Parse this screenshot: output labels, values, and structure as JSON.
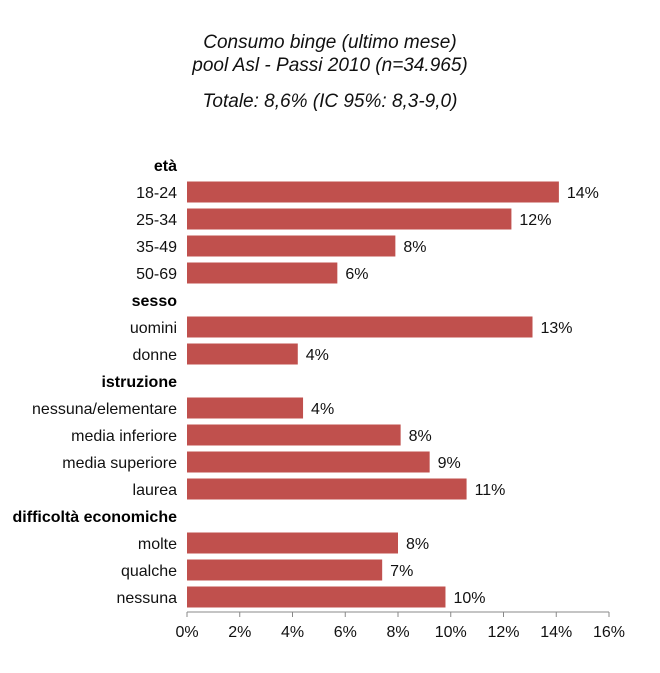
{
  "chart_data": {
    "type": "bar",
    "orientation": "horizontal",
    "title": "Consumo binge (ultimo mese)",
    "subtitle": "pool Asl - Passi 2010 (n=34.965)",
    "annotation": "Totale: 8,6% (IC 95%: 8,3-9,0)",
    "xlim": [
      0,
      16
    ],
    "xticks": [
      "0%",
      "2%",
      "4%",
      "6%",
      "8%",
      "10%",
      "12%",
      "14%",
      "16%"
    ],
    "bar_color": "#C0504D",
    "groups": [
      {
        "name": "età",
        "items": [
          {
            "label": "18-24",
            "value": 14.1,
            "data_label": "14%"
          },
          {
            "label": "25-34",
            "value": 12.3,
            "data_label": "12%"
          },
          {
            "label": "35-49",
            "value": 7.9,
            "data_label": "8%"
          },
          {
            "label": "50-69",
            "value": 5.7,
            "data_label": "6%"
          }
        ]
      },
      {
        "name": "sesso",
        "items": [
          {
            "label": "uomini",
            "value": 13.1,
            "data_label": "13%"
          },
          {
            "label": "donne",
            "value": 4.2,
            "data_label": "4%"
          }
        ]
      },
      {
        "name": "istruzione",
        "items": [
          {
            "label": "nessuna/elementare",
            "value": 4.4,
            "data_label": "4%"
          },
          {
            "label": "media inferiore",
            "value": 8.1,
            "data_label": "8%"
          },
          {
            "label": "media superiore",
            "value": 9.2,
            "data_label": "9%"
          },
          {
            "label": "laurea",
            "value": 10.6,
            "data_label": "11%"
          }
        ]
      },
      {
        "name": "difficoltà economiche",
        "items": [
          {
            "label": "molte",
            "value": 8.0,
            "data_label": "8%"
          },
          {
            "label": "qualche",
            "value": 7.4,
            "data_label": "7%"
          },
          {
            "label": "nessuna",
            "value": 9.8,
            "data_label": "10%"
          }
        ]
      }
    ]
  }
}
